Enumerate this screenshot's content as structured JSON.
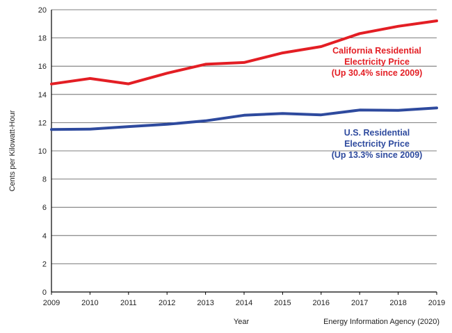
{
  "chart_data": {
    "type": "line",
    "title": "",
    "xlabel": "Year",
    "ylabel": "Cents per Kilowatt-Hour",
    "source": "Energy Information Agency (2020)",
    "x": [
      2009,
      2010,
      2011,
      2012,
      2013,
      2014,
      2015,
      2016,
      2017,
      2018,
      2019
    ],
    "xlim": [
      2009,
      2019
    ],
    "ylim": [
      0,
      20
    ],
    "yticks": [
      0,
      2,
      4,
      6,
      8,
      10,
      12,
      14,
      16,
      18,
      20
    ],
    "grid": true,
    "series": [
      {
        "key": "ca",
        "values": [
          14.74,
          15.13,
          14.75,
          15.5,
          16.14,
          16.26,
          16.94,
          17.39,
          18.31,
          18.83,
          19.21
        ],
        "color": "#e31e24",
        "label_lines": [
          "California Residential",
          "Electricity Price",
          "(Up 30.4% since 2009)"
        ]
      },
      {
        "key": "us",
        "values": [
          11.51,
          11.54,
          11.72,
          11.88,
          12.13,
          12.52,
          12.65,
          12.55,
          12.89,
          12.87,
          13.04
        ],
        "color": "#2e4a9e",
        "label_lines": [
          "U.S. Residential",
          "Electricity Price",
          "(Up 13.3% since 2009)"
        ]
      }
    ]
  }
}
